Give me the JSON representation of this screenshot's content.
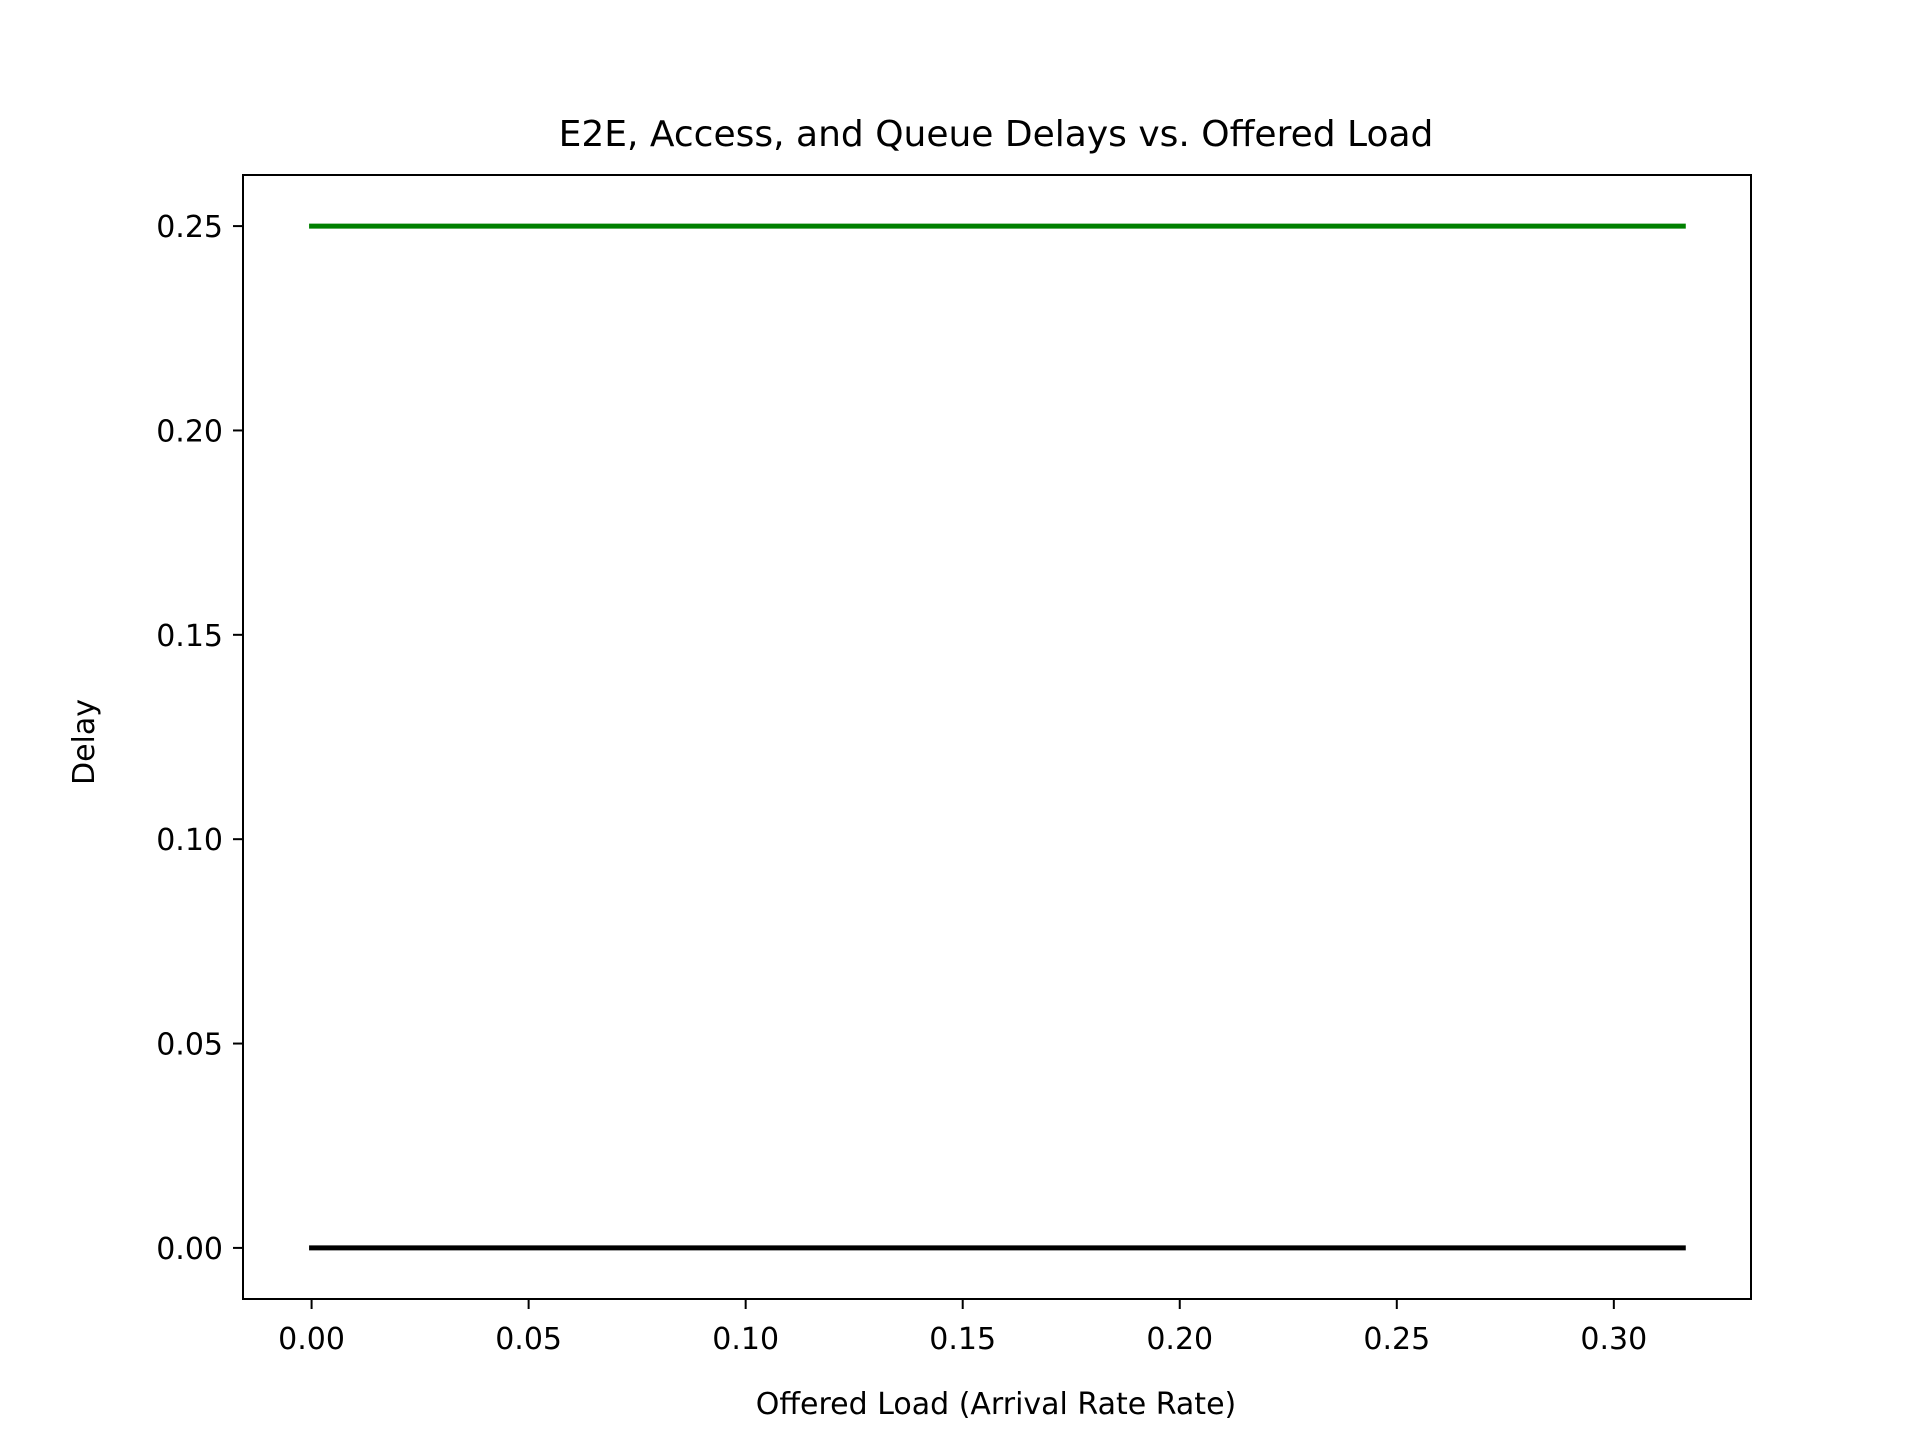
{
  "chart_data": {
    "type": "line",
    "title": "E2E, Access, and Queue Delays vs. Offered Load",
    "xlabel": "Offered Load (Arrival Rate Rate)",
    "ylabel": "Delay",
    "xlim": [
      -0.0158,
      0.3316
    ],
    "ylim": [
      -0.0125,
      0.2625
    ],
    "xticks": [
      0.0,
      0.05,
      0.1,
      0.15,
      0.2,
      0.25,
      0.3
    ],
    "xtick_labels": [
      "0.00",
      "0.05",
      "0.10",
      "0.15",
      "0.20",
      "0.25",
      "0.30"
    ],
    "yticks": [
      0.0,
      0.05,
      0.1,
      0.15,
      0.2,
      0.25
    ],
    "ytick_labels": [
      "0.00",
      "0.05",
      "0.10",
      "0.15",
      "0.20",
      "0.25"
    ],
    "grid": false,
    "legend": false,
    "series": [
      {
        "color": "#008000",
        "x": [
          0.0,
          0.05,
          0.1,
          0.15,
          0.2,
          0.25,
          0.3,
          0.316
        ],
        "y": [
          0.25,
          0.25,
          0.25,
          0.25,
          0.25,
          0.25,
          0.25,
          0.25
        ]
      },
      {
        "color": "#000000",
        "x": [
          0.0,
          0.05,
          0.1,
          0.15,
          0.2,
          0.25,
          0.3,
          0.316
        ],
        "y": [
          0.0,
          0.0,
          0.0,
          0.0,
          0.0,
          0.0,
          0.0,
          0.0
        ]
      }
    ]
  }
}
